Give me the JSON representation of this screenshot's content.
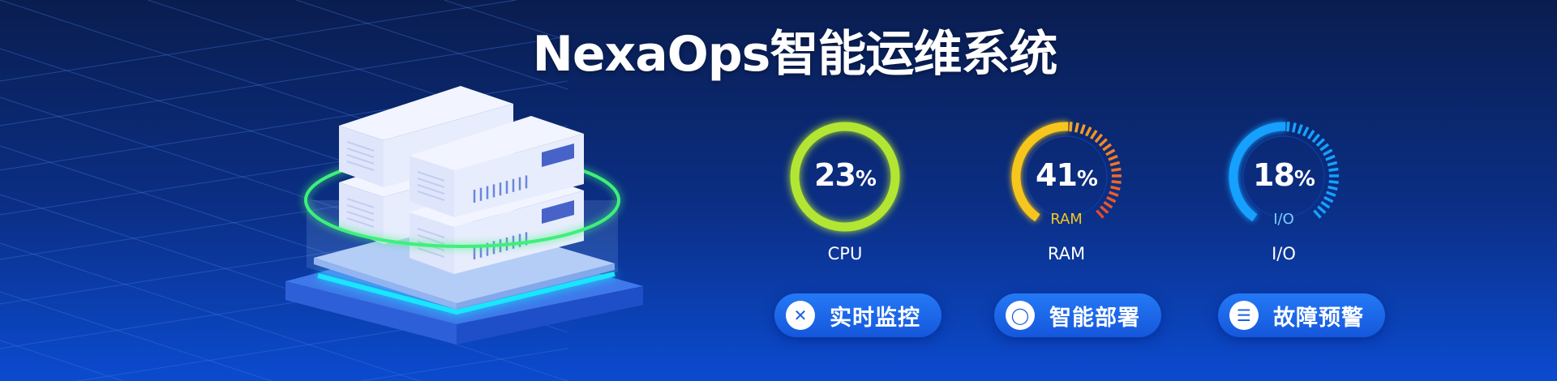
{
  "title": "NexaOps智能运维系统",
  "colors": {
    "cpu": "#b3e632",
    "ram_start": "#f7c61c",
    "ram_end": "#e84a2a",
    "io": "#16a0ff",
    "button": "#1d6cf0"
  },
  "gauges": [
    {
      "value": 23,
      "percent_label": "23",
      "unit": "%",
      "inner_label": "",
      "label": "CPU"
    },
    {
      "value": 41,
      "percent_label": "41",
      "unit": "%",
      "inner_label": "RAM",
      "label": "RAM"
    },
    {
      "value": 18,
      "percent_label": "18",
      "unit": "%",
      "inner_label": "I/O",
      "label": "I/O"
    }
  ],
  "buttons": [
    {
      "label": "实时监控",
      "icon": "close-x-icon",
      "glyph": "✕"
    },
    {
      "label": "智能部署",
      "icon": "lightbulb-icon",
      "glyph": "◯"
    },
    {
      "label": "故障预警",
      "icon": "menu-list-icon",
      "glyph": "☰"
    }
  ]
}
